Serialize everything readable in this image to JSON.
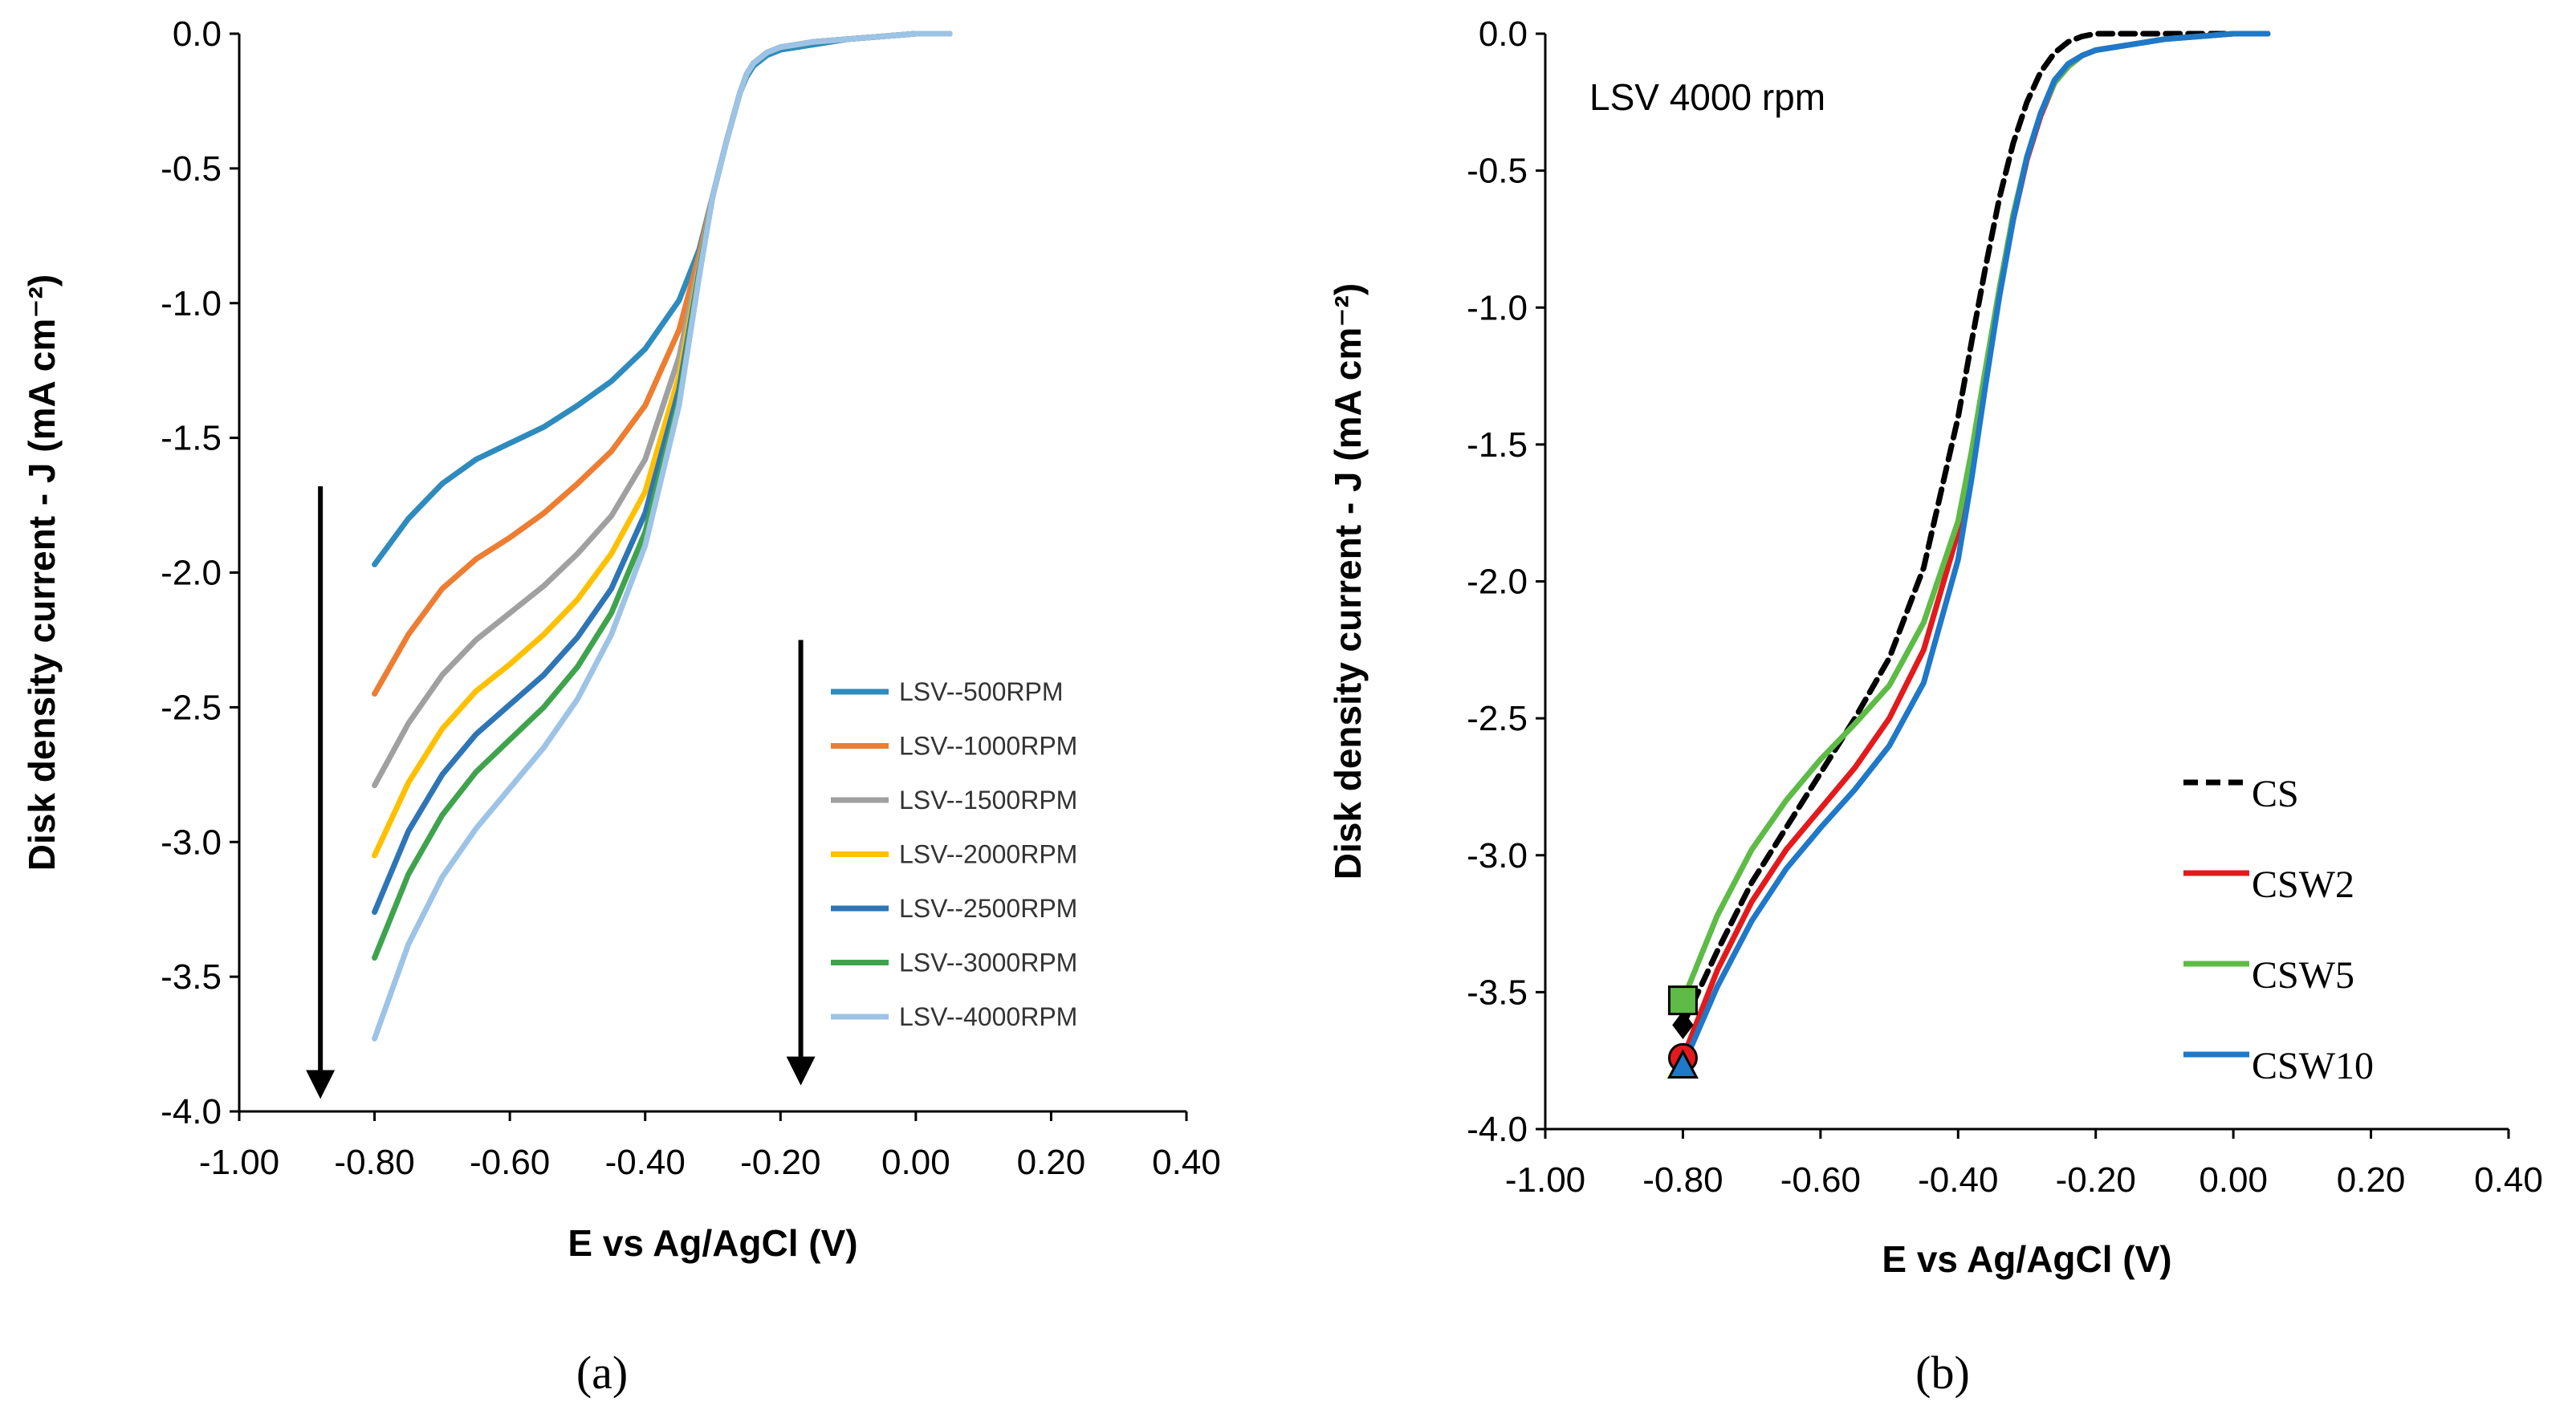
{
  "chart_data": [
    {
      "panel": "(a)",
      "type": "line",
      "title": "",
      "xlabel": "E vs Ag/AgCl (V)",
      "ylabel": "Disk density current - J (mA cm⁻²)",
      "xlim": [
        -1.0,
        0.4
      ],
      "ylim": [
        -4.0,
        0.0
      ],
      "xticks": [
        "-1.00",
        "-0.80",
        "-0.60",
        "-0.40",
        "-0.20",
        "0.00",
        "0.20",
        "0.40"
      ],
      "yticks": [
        "0.0",
        "-0.5",
        "-1.0",
        "-1.5",
        "-2.0",
        "-2.5",
        "-3.0",
        "-3.5",
        "-4.0"
      ],
      "legend_position": "right",
      "arrows": [
        {
          "x": -0.88,
          "y_from": -1.68,
          "y_to": -3.9
        },
        {
          "x": -0.17,
          "y_from": -2.25,
          "y_to": -3.85
        }
      ],
      "series": [
        {
          "name": "LSV--500RPM",
          "color": "#2e8bbd",
          "dash": false,
          "x": [
            -0.8,
            -0.75,
            -0.7,
            -0.65,
            -0.6,
            -0.55,
            -0.5,
            -0.45,
            -0.4,
            -0.35,
            -0.32,
            -0.3,
            -0.28,
            -0.26,
            -0.25,
            -0.24,
            -0.22,
            -0.2,
            -0.15,
            -0.1,
            0.0,
            0.05
          ],
          "y": [
            -1.97,
            -1.8,
            -1.67,
            -1.58,
            -1.52,
            -1.46,
            -1.38,
            -1.29,
            -1.17,
            -0.99,
            -0.8,
            -0.6,
            -0.4,
            -0.22,
            -0.16,
            -0.12,
            -0.08,
            -0.06,
            -0.04,
            -0.02,
            0.0,
            0.0
          ]
        },
        {
          "name": "LSV--1000RPM",
          "color": "#ed7d31",
          "dash": false,
          "x": [
            -0.8,
            -0.75,
            -0.7,
            -0.65,
            -0.6,
            -0.55,
            -0.5,
            -0.45,
            -0.4,
            -0.35,
            -0.32,
            -0.3,
            -0.28,
            -0.26,
            -0.25,
            -0.24,
            -0.22,
            -0.2,
            -0.15,
            -0.1,
            0.0,
            0.05
          ],
          "y": [
            -2.45,
            -2.23,
            -2.06,
            -1.95,
            -1.87,
            -1.78,
            -1.67,
            -1.55,
            -1.38,
            -1.1,
            -0.82,
            -0.6,
            -0.4,
            -0.22,
            -0.15,
            -0.11,
            -0.07,
            -0.05,
            -0.03,
            -0.02,
            0.0,
            0.0
          ]
        },
        {
          "name": "LSV--1500RPM",
          "color": "#a0a0a0",
          "dash": false,
          "x": [
            -0.8,
            -0.75,
            -0.7,
            -0.65,
            -0.6,
            -0.55,
            -0.5,
            -0.45,
            -0.4,
            -0.35,
            -0.32,
            -0.3,
            -0.28,
            -0.26,
            -0.25,
            -0.24,
            -0.22,
            -0.2,
            -0.15,
            -0.1,
            0.0,
            0.05
          ],
          "y": [
            -2.79,
            -2.56,
            -2.38,
            -2.25,
            -2.15,
            -2.05,
            -1.93,
            -1.79,
            -1.58,
            -1.2,
            -0.85,
            -0.6,
            -0.4,
            -0.22,
            -0.15,
            -0.11,
            -0.07,
            -0.05,
            -0.03,
            -0.02,
            0.0,
            0.0
          ]
        },
        {
          "name": "LSV--2000RPM",
          "color": "#ffc000",
          "dash": false,
          "x": [
            -0.8,
            -0.75,
            -0.7,
            -0.65,
            -0.6,
            -0.55,
            -0.5,
            -0.45,
            -0.4,
            -0.35,
            -0.32,
            -0.3,
            -0.28,
            -0.26,
            -0.25,
            -0.24,
            -0.22,
            -0.2,
            -0.15,
            -0.1,
            0.0,
            0.05
          ],
          "y": [
            -3.05,
            -2.78,
            -2.58,
            -2.44,
            -2.34,
            -2.23,
            -2.1,
            -1.93,
            -1.7,
            -1.27,
            -0.87,
            -0.6,
            -0.4,
            -0.22,
            -0.15,
            -0.11,
            -0.07,
            -0.05,
            -0.03,
            -0.02,
            0.0,
            0.0
          ]
        },
        {
          "name": "LSV--2500RPM",
          "color": "#2e75b6",
          "dash": false,
          "x": [
            -0.8,
            -0.75,
            -0.7,
            -0.65,
            -0.6,
            -0.55,
            -0.5,
            -0.45,
            -0.4,
            -0.35,
            -0.32,
            -0.3,
            -0.28,
            -0.26,
            -0.25,
            -0.24,
            -0.22,
            -0.2,
            -0.15,
            -0.1,
            0.0,
            0.05
          ],
          "y": [
            -3.26,
            -2.96,
            -2.75,
            -2.6,
            -2.49,
            -2.38,
            -2.24,
            -2.06,
            -1.78,
            -1.32,
            -0.88,
            -0.6,
            -0.4,
            -0.22,
            -0.15,
            -0.11,
            -0.07,
            -0.05,
            -0.03,
            -0.02,
            0.0,
            0.0
          ]
        },
        {
          "name": "LSV--3000RPM",
          "color": "#3fa34d",
          "dash": false,
          "x": [
            -0.8,
            -0.75,
            -0.7,
            -0.65,
            -0.6,
            -0.55,
            -0.5,
            -0.45,
            -0.4,
            -0.35,
            -0.32,
            -0.3,
            -0.28,
            -0.26,
            -0.25,
            -0.24,
            -0.22,
            -0.2,
            -0.15,
            -0.1,
            0.0,
            0.05
          ],
          "y": [
            -3.43,
            -3.12,
            -2.9,
            -2.74,
            -2.62,
            -2.5,
            -2.35,
            -2.15,
            -1.85,
            -1.36,
            -0.89,
            -0.6,
            -0.4,
            -0.22,
            -0.15,
            -0.11,
            -0.07,
            -0.05,
            -0.03,
            -0.02,
            0.0,
            0.0
          ]
        },
        {
          "name": "LSV--4000RPM",
          "color": "#9dc3e6",
          "dash": false,
          "x": [
            -0.8,
            -0.75,
            -0.7,
            -0.65,
            -0.6,
            -0.55,
            -0.5,
            -0.45,
            -0.4,
            -0.35,
            -0.32,
            -0.3,
            -0.28,
            -0.26,
            -0.25,
            -0.24,
            -0.22,
            -0.2,
            -0.15,
            -0.1,
            0.0,
            0.05
          ],
          "y": [
            -3.73,
            -3.38,
            -3.13,
            -2.95,
            -2.8,
            -2.65,
            -2.47,
            -2.23,
            -1.9,
            -1.38,
            -0.9,
            -0.6,
            -0.4,
            -0.22,
            -0.15,
            -0.11,
            -0.07,
            -0.05,
            -0.03,
            -0.02,
            0.0,
            0.0
          ]
        }
      ]
    },
    {
      "panel": "(b)",
      "type": "line",
      "title": "",
      "annotation": "LSV 4000 rpm",
      "xlabel": "E vs Ag/AgCl (V)",
      "ylabel": "Disk density current - J (mA cm⁻²)",
      "xlim": [
        -1.0,
        0.4
      ],
      "ylim": [
        -4.0,
        0.0
      ],
      "xticks": [
        "-1.00",
        "-0.80",
        "-0.60",
        "-0.40",
        "-0.20",
        "0.00",
        "0.20",
        "0.40"
      ],
      "yticks": [
        "0.0",
        "-0.5",
        "-1.0",
        "-1.5",
        "-2.0",
        "-2.5",
        "-3.0",
        "-3.5",
        "-4.0"
      ],
      "legend_position": "bottom-right",
      "series": [
        {
          "name": "CS",
          "color": "#000000",
          "dash": true,
          "marker": "diamond",
          "x": [
            -0.8,
            -0.75,
            -0.7,
            -0.65,
            -0.6,
            -0.55,
            -0.5,
            -0.45,
            -0.4,
            -0.38,
            -0.36,
            -0.34,
            -0.32,
            -0.3,
            -0.28,
            -0.26,
            -0.24,
            -0.22,
            -0.2,
            -0.15,
            -0.1,
            0.0,
            0.05
          ],
          "y": [
            -3.62,
            -3.35,
            -3.1,
            -2.9,
            -2.7,
            -2.5,
            -2.28,
            -1.95,
            -1.4,
            -1.12,
            -0.85,
            -0.6,
            -0.4,
            -0.25,
            -0.14,
            -0.07,
            -0.03,
            -0.01,
            0.0,
            0.0,
            0.0,
            0.0,
            0.0
          ]
        },
        {
          "name": "CSW2",
          "color": "#e31a1c",
          "dash": false,
          "marker": "circle",
          "x": [
            -0.8,
            -0.75,
            -0.7,
            -0.65,
            -0.6,
            -0.55,
            -0.5,
            -0.45,
            -0.4,
            -0.38,
            -0.36,
            -0.34,
            -0.32,
            -0.3,
            -0.28,
            -0.26,
            -0.24,
            -0.22,
            -0.2,
            -0.15,
            -0.1,
            0.0,
            0.05
          ],
          "y": [
            -3.74,
            -3.42,
            -3.17,
            -2.98,
            -2.83,
            -2.68,
            -2.5,
            -2.25,
            -1.82,
            -1.55,
            -1.25,
            -0.95,
            -0.68,
            -0.46,
            -0.3,
            -0.18,
            -0.12,
            -0.08,
            -0.06,
            -0.04,
            -0.02,
            0.0,
            0.0
          ]
        },
        {
          "name": "CSW5",
          "color": "#5dbb46",
          "dash": false,
          "marker": "square",
          "x": [
            -0.8,
            -0.75,
            -0.7,
            -0.65,
            -0.6,
            -0.55,
            -0.5,
            -0.45,
            -0.4,
            -0.38,
            -0.36,
            -0.34,
            -0.32,
            -0.3,
            -0.28,
            -0.26,
            -0.24,
            -0.22,
            -0.2,
            -0.15,
            -0.1,
            0.0,
            0.05
          ],
          "y": [
            -3.53,
            -3.22,
            -2.98,
            -2.8,
            -2.65,
            -2.52,
            -2.38,
            -2.15,
            -1.78,
            -1.52,
            -1.22,
            -0.93,
            -0.66,
            -0.45,
            -0.29,
            -0.18,
            -0.12,
            -0.08,
            -0.06,
            -0.04,
            -0.02,
            0.0,
            0.0
          ]
        },
        {
          "name": "CSW10",
          "color": "#1f78c8",
          "dash": false,
          "marker": "triangle",
          "x": [
            -0.8,
            -0.75,
            -0.7,
            -0.65,
            -0.6,
            -0.55,
            -0.5,
            -0.45,
            -0.4,
            -0.38,
            -0.36,
            -0.34,
            -0.32,
            -0.3,
            -0.28,
            -0.26,
            -0.24,
            -0.22,
            -0.2,
            -0.15,
            -0.1,
            0.0,
            0.05
          ],
          "y": [
            -3.77,
            -3.48,
            -3.24,
            -3.05,
            -2.9,
            -2.76,
            -2.6,
            -2.37,
            -1.92,
            -1.62,
            -1.28,
            -0.96,
            -0.68,
            -0.45,
            -0.29,
            -0.17,
            -0.11,
            -0.08,
            -0.06,
            -0.04,
            -0.02,
            0.0,
            0.0
          ]
        }
      ]
    }
  ]
}
